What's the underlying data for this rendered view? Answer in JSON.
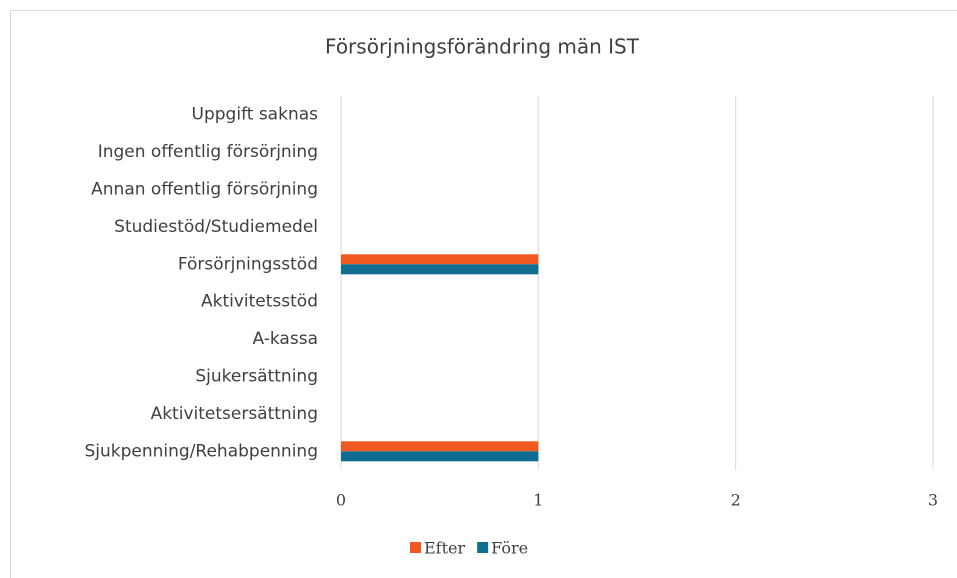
{
  "chart_data": {
    "type": "bar",
    "orientation": "horizontal",
    "title": "Försörjningsförändring män IST",
    "categories": [
      "Uppgift saknas",
      "Ingen offentlig försörjning",
      "Annan offentlig försörjning",
      "Studiestöd/Studiemedel",
      "Försörjningsstöd",
      "Aktivitetsstöd",
      "A-kassa",
      "Sjukersättning",
      "Aktivitetsersättning",
      "Sjukpenning/Rehabpenning"
    ],
    "series": [
      {
        "name": "Efter",
        "color": "#f05a22",
        "values": [
          0,
          0,
          0,
          0,
          1,
          0,
          0,
          0,
          0,
          1
        ]
      },
      {
        "name": "Före",
        "color": "#0f6e8f",
        "values": [
          0,
          0,
          0,
          0,
          1,
          0,
          0,
          0,
          0,
          1
        ]
      }
    ],
    "xlim": [
      0,
      3
    ],
    "xticks": [
      0,
      1,
      2,
      3
    ],
    "grid": true,
    "legend": "bottom"
  }
}
